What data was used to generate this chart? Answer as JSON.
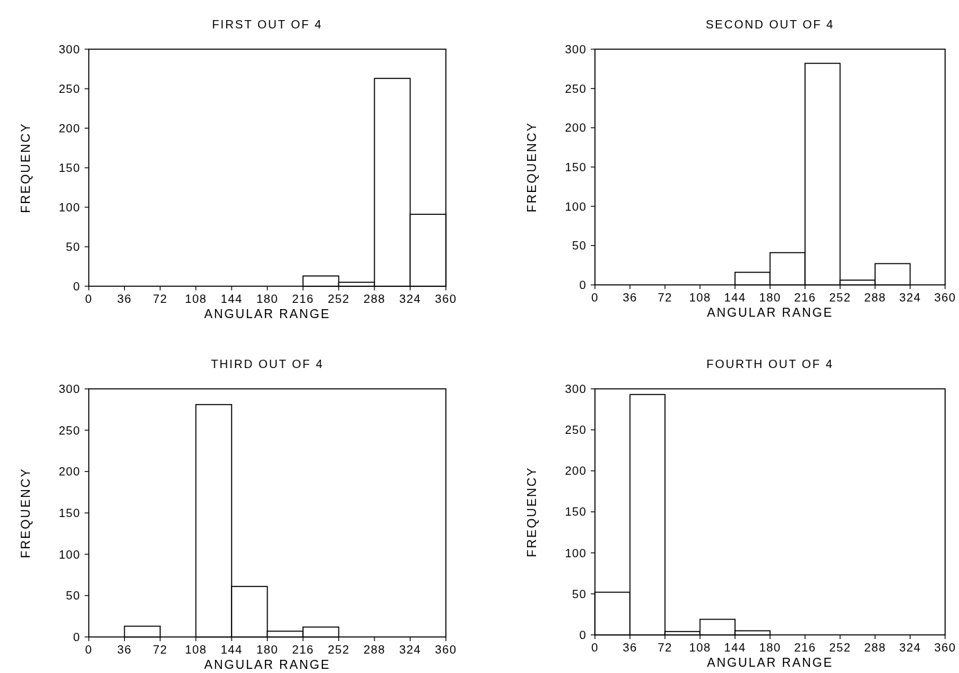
{
  "chart_data": [
    {
      "type": "histogram",
      "title": "FIRST OUT OF 4",
      "xlabel": "ANGULAR RANGE",
      "ylabel": "FREQUENCY",
      "bins": [
        0,
        36,
        72,
        108,
        144,
        180,
        216,
        252,
        288,
        324,
        360
      ],
      "values": [
        0,
        0,
        0,
        0,
        0,
        0,
        13,
        5,
        263,
        91
      ],
      "xlim": [
        0,
        360
      ],
      "ylim": [
        0,
        300
      ],
      "xticks": [
        0,
        36,
        72,
        108,
        144,
        180,
        216,
        252,
        288,
        324,
        360
      ],
      "yticks": [
        0,
        50,
        100,
        150,
        200,
        250,
        300
      ]
    },
    {
      "type": "histogram",
      "title": "SECOND OUT OF 4",
      "xlabel": "ANGULAR RANGE",
      "ylabel": "FREQUENCY",
      "bins": [
        0,
        36,
        72,
        108,
        144,
        180,
        216,
        252,
        288,
        324,
        360
      ],
      "values": [
        0,
        0,
        0,
        0,
        16,
        41,
        282,
        6,
        27,
        0
      ],
      "xlim": [
        0,
        360
      ],
      "ylim": [
        0,
        300
      ],
      "xticks": [
        0,
        36,
        72,
        108,
        144,
        180,
        216,
        252,
        288,
        324,
        360
      ],
      "yticks": [
        0,
        50,
        100,
        150,
        200,
        250,
        300
      ]
    },
    {
      "type": "histogram",
      "title": "THIRD OUT OF 4",
      "xlabel": "ANGULAR RANGE",
      "ylabel": "FREQUENCY",
      "bins": [
        0,
        36,
        72,
        108,
        144,
        180,
        216,
        252,
        288,
        324,
        360
      ],
      "values": [
        0,
        13,
        0,
        281,
        61,
        7,
        12,
        0,
        0,
        0
      ],
      "xlim": [
        0,
        360
      ],
      "ylim": [
        0,
        300
      ],
      "xticks": [
        0,
        36,
        72,
        108,
        144,
        180,
        216,
        252,
        288,
        324,
        360
      ],
      "yticks": [
        0,
        50,
        100,
        150,
        200,
        250,
        300
      ]
    },
    {
      "type": "histogram",
      "title": "FOURTH OUT OF 4",
      "xlabel": "ANGULAR RANGE",
      "ylabel": "FREQUENCY",
      "bins": [
        0,
        36,
        72,
        108,
        144,
        180,
        216,
        252,
        288,
        324,
        360
      ],
      "values": [
        52,
        293,
        4,
        19,
        5,
        0,
        0,
        0,
        0,
        0
      ],
      "xlim": [
        0,
        360
      ],
      "ylim": [
        0,
        300
      ],
      "xticks": [
        0,
        36,
        72,
        108,
        144,
        180,
        216,
        252,
        288,
        324,
        360
      ],
      "yticks": [
        0,
        50,
        100,
        150,
        200,
        250,
        300
      ]
    }
  ]
}
